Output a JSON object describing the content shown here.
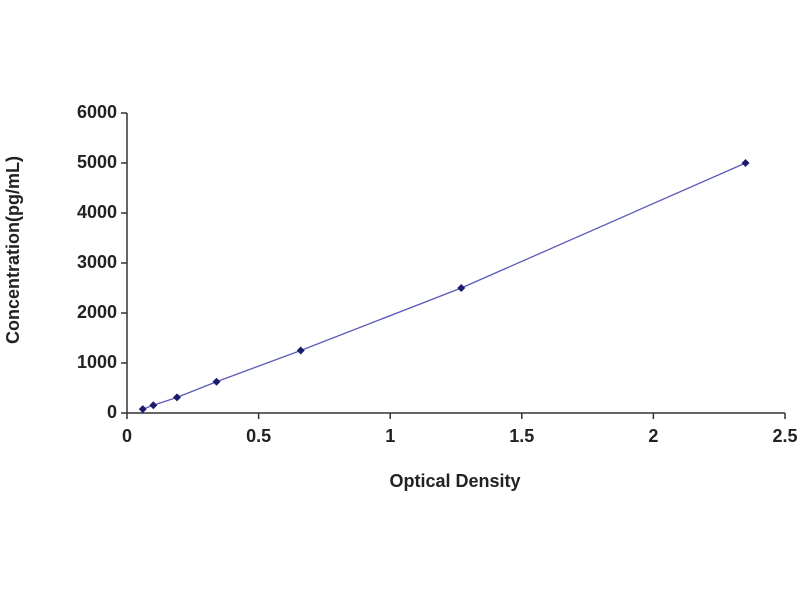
{
  "chart_data": {
    "type": "line",
    "x_label": "Optical Density",
    "y_label": "Concentration(pg/mL)",
    "x": [
      0.06,
      0.1,
      0.19,
      0.34,
      0.66,
      1.27,
      2.35
    ],
    "series": [
      {
        "color": "#5a5ab8",
        "marker_color": "#1c1c6c",
        "values": [
          78,
          156,
          312,
          625,
          1250,
          2500,
          5000
        ]
      }
    ],
    "xlim": [
      0,
      2.5
    ],
    "xticks": [
      0,
      0.5,
      1,
      1.5,
      2,
      2.5
    ],
    "ylim": [
      0,
      6000
    ],
    "yticks": [
      0,
      1000,
      2000,
      3000,
      4000,
      5000,
      6000
    ]
  }
}
